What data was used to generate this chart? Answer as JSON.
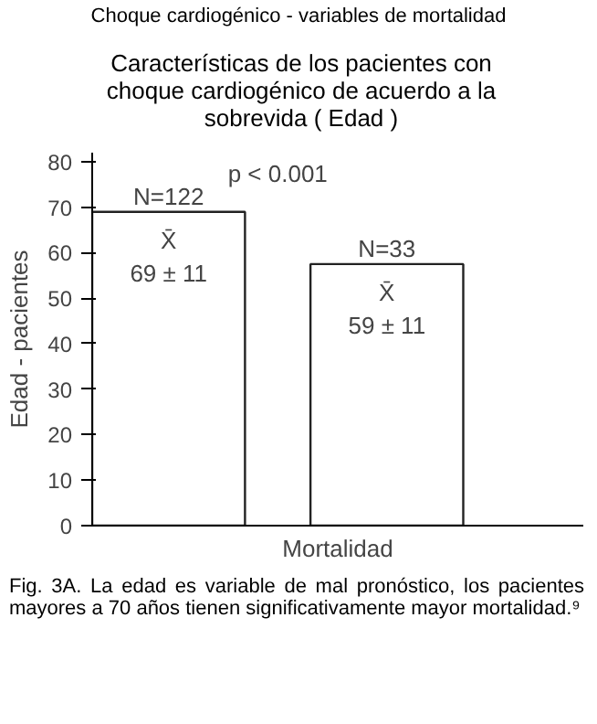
{
  "chart_data": {
    "type": "bar",
    "title": "Choque cardiogénico - variables de mortalidad",
    "subtitle": "Características de los pacientes con choque cardiogénico de acuerdo a la sobrevida ( Edad )",
    "xlabel": "Mortalidad",
    "ylabel": "Edad - pacientes",
    "categories": [
      null,
      null
    ],
    "values": [
      69,
      57.5
    ],
    "color": "#ffffff",
    "ylim": [
      0,
      82
    ],
    "yticks": [
      0,
      10,
      20,
      30,
      40,
      50,
      60,
      70,
      80
    ],
    "grid": false,
    "annotations": [
      "p < 0.001",
      "N=122",
      "X̄\n69 ± 11",
      "N=33",
      "X̄\n59 ± 11",
      "Fig. 3A. La edad es variable de mal pronóstico, los pacientes mayores a 70 años tienen significativamente mayor mortalidad.⁹"
    ]
  }
}
